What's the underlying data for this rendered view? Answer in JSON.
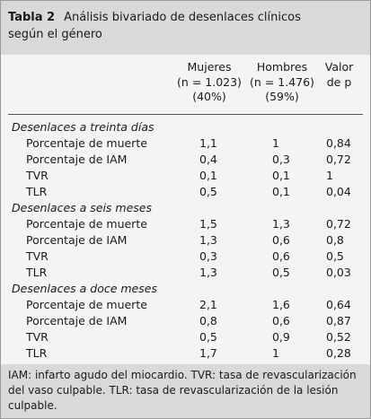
{
  "title": {
    "label": "Tabla 2",
    "line1": "Análisis bivariado de desenlaces clínicos",
    "line2": "según el género"
  },
  "columns": [
    {
      "line1": "Mujeres",
      "line2": "(n = 1.023)",
      "line3": "(40%)"
    },
    {
      "line1": "Hombres",
      "line2": "(n = 1.476)",
      "line3": "(59%)"
    },
    {
      "line1": "Valor",
      "line2": "de p",
      "line3": ""
    }
  ],
  "sections": [
    {
      "title": "Desenlaces a treinta días",
      "rows": [
        {
          "label": "Porcentaje de muerte",
          "values": [
            "1,1",
            "1",
            "0,84"
          ]
        },
        {
          "label": "Porcentaje de IAM",
          "values": [
            "0,4",
            "0,3",
            "0,72"
          ]
        },
        {
          "label": "TVR",
          "values": [
            "0,1",
            "0,1",
            "1"
          ]
        },
        {
          "label": "TLR",
          "values": [
            "0,5",
            "0,1",
            "0,04"
          ]
        }
      ]
    },
    {
      "title": "Desenlaces a seis meses",
      "rows": [
        {
          "label": "Porcentaje de muerte",
          "values": [
            "1,5",
            "1,3",
            "0,72"
          ]
        },
        {
          "label": "Porcentaje de IAM",
          "values": [
            "1,3",
            "0,6",
            "0,8"
          ]
        },
        {
          "label": "TVR",
          "values": [
            "0,3",
            "0,6",
            "0,5"
          ]
        },
        {
          "label": "TLR",
          "values": [
            "1,3",
            "0,5",
            "0,03"
          ]
        }
      ]
    },
    {
      "title": "Desenlaces a doce meses",
      "rows": [
        {
          "label": "Porcentaje de muerte",
          "values": [
            "2,1",
            "1,6",
            "0,64"
          ]
        },
        {
          "label": "Porcentaje de IAM",
          "values": [
            "0,8",
            "0,6",
            "0,87"
          ]
        },
        {
          "label": "TVR",
          "values": [
            "0,5",
            "0,9",
            "0,52"
          ]
        },
        {
          "label": "TLR",
          "values": [
            "1,7",
            "1",
            "0,28"
          ]
        }
      ]
    }
  ],
  "footnote": {
    "line1": "IAM: infarto agudo del miocardio. TVR: tasa de revascularización",
    "line2": "del vaso culpable. TLR: tasa de revascularización de la lesión",
    "line3": "culpable."
  }
}
